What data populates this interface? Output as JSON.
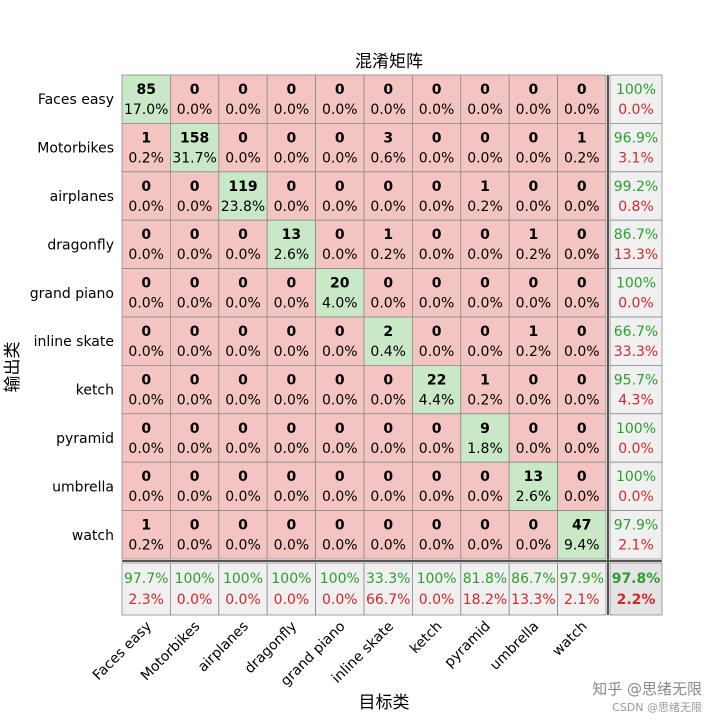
{
  "chart_data": {
    "type": "heatmap",
    "title": "混淆矩阵",
    "xlabel": "目标类",
    "ylabel": "输出类",
    "classes": [
      "Faces easy",
      "Motorbikes",
      "airplanes",
      "dragonfly",
      "grand piano",
      "inline skate",
      "ketch",
      "pyramid",
      "umbrella",
      "watch"
    ],
    "counts": [
      [
        85,
        0,
        0,
        0,
        0,
        0,
        0,
        0,
        0,
        0
      ],
      [
        1,
        158,
        0,
        0,
        0,
        3,
        0,
        0,
        0,
        1
      ],
      [
        0,
        0,
        119,
        0,
        0,
        0,
        0,
        1,
        0,
        0
      ],
      [
        0,
        0,
        0,
        13,
        0,
        1,
        0,
        0,
        1,
        0
      ],
      [
        0,
        0,
        0,
        0,
        20,
        0,
        0,
        0,
        0,
        0
      ],
      [
        0,
        0,
        0,
        0,
        0,
        2,
        0,
        0,
        1,
        0
      ],
      [
        0,
        0,
        0,
        0,
        0,
        0,
        22,
        1,
        0,
        0
      ],
      [
        0,
        0,
        0,
        0,
        0,
        0,
        0,
        9,
        0,
        0
      ],
      [
        0,
        0,
        0,
        0,
        0,
        0,
        0,
        0,
        13,
        0
      ],
      [
        1,
        0,
        0,
        0,
        0,
        0,
        0,
        0,
        0,
        47
      ]
    ],
    "percents": [
      [
        "17.0%",
        "0.0%",
        "0.0%",
        "0.0%",
        "0.0%",
        "0.0%",
        "0.0%",
        "0.0%",
        "0.0%",
        "0.0%"
      ],
      [
        "0.2%",
        "31.7%",
        "0.0%",
        "0.0%",
        "0.0%",
        "0.6%",
        "0.0%",
        "0.0%",
        "0.0%",
        "0.2%"
      ],
      [
        "0.0%",
        "0.0%",
        "23.8%",
        "0.0%",
        "0.0%",
        "0.0%",
        "0.0%",
        "0.2%",
        "0.0%",
        "0.0%"
      ],
      [
        "0.0%",
        "0.0%",
        "0.0%",
        "2.6%",
        "0.0%",
        "0.2%",
        "0.0%",
        "0.0%",
        "0.2%",
        "0.0%"
      ],
      [
        "0.0%",
        "0.0%",
        "0.0%",
        "0.0%",
        "4.0%",
        "0.0%",
        "0.0%",
        "0.0%",
        "0.0%",
        "0.0%"
      ],
      [
        "0.0%",
        "0.0%",
        "0.0%",
        "0.0%",
        "0.0%",
        "0.4%",
        "0.0%",
        "0.0%",
        "0.2%",
        "0.0%"
      ],
      [
        "0.0%",
        "0.0%",
        "0.0%",
        "0.0%",
        "0.0%",
        "0.0%",
        "4.4%",
        "0.2%",
        "0.0%",
        "0.0%"
      ],
      [
        "0.0%",
        "0.0%",
        "0.0%",
        "0.0%",
        "0.0%",
        "0.0%",
        "0.0%",
        "1.8%",
        "0.0%",
        "0.0%"
      ],
      [
        "0.0%",
        "0.0%",
        "0.0%",
        "0.0%",
        "0.0%",
        "0.0%",
        "0.0%",
        "0.0%",
        "2.6%",
        "0.0%"
      ],
      [
        "0.2%",
        "0.0%",
        "0.0%",
        "0.0%",
        "0.0%",
        "0.0%",
        "0.0%",
        "0.0%",
        "0.0%",
        "9.4%"
      ]
    ],
    "row_summary": [
      [
        "100%",
        "0.0%"
      ],
      [
        "96.9%",
        "3.1%"
      ],
      [
        "99.2%",
        "0.8%"
      ],
      [
        "86.7%",
        "13.3%"
      ],
      [
        "100%",
        "0.0%"
      ],
      [
        "66.7%",
        "33.3%"
      ],
      [
        "95.7%",
        "4.3%"
      ],
      [
        "100%",
        "0.0%"
      ],
      [
        "100%",
        "0.0%"
      ],
      [
        "97.9%",
        "2.1%"
      ]
    ],
    "col_summary": [
      [
        "97.7%",
        "2.3%"
      ],
      [
        "100%",
        "0.0%"
      ],
      [
        "100%",
        "0.0%"
      ],
      [
        "100%",
        "0.0%"
      ],
      [
        "100%",
        "0.0%"
      ],
      [
        "33.3%",
        "66.7%"
      ],
      [
        "100%",
        "0.0%"
      ],
      [
        "81.8%",
        "18.2%"
      ],
      [
        "86.7%",
        "13.3%"
      ],
      [
        "97.9%",
        "2.1%"
      ]
    ],
    "overall": [
      "97.8%",
      "2.2%"
    ],
    "colors": {
      "correct_cell": "#c9e8c6",
      "incorrect_cell": "#f4c4c3",
      "summary_cell": "#f0f0f0",
      "correct_text": "#2ca02c",
      "incorrect_text": "#d62728",
      "grid_line": "#8a8a8a",
      "cell_text": "#000000"
    }
  },
  "watermark": {
    "line1": "知乎 @思绪无限",
    "line2": "CSDN @思绪无限"
  }
}
